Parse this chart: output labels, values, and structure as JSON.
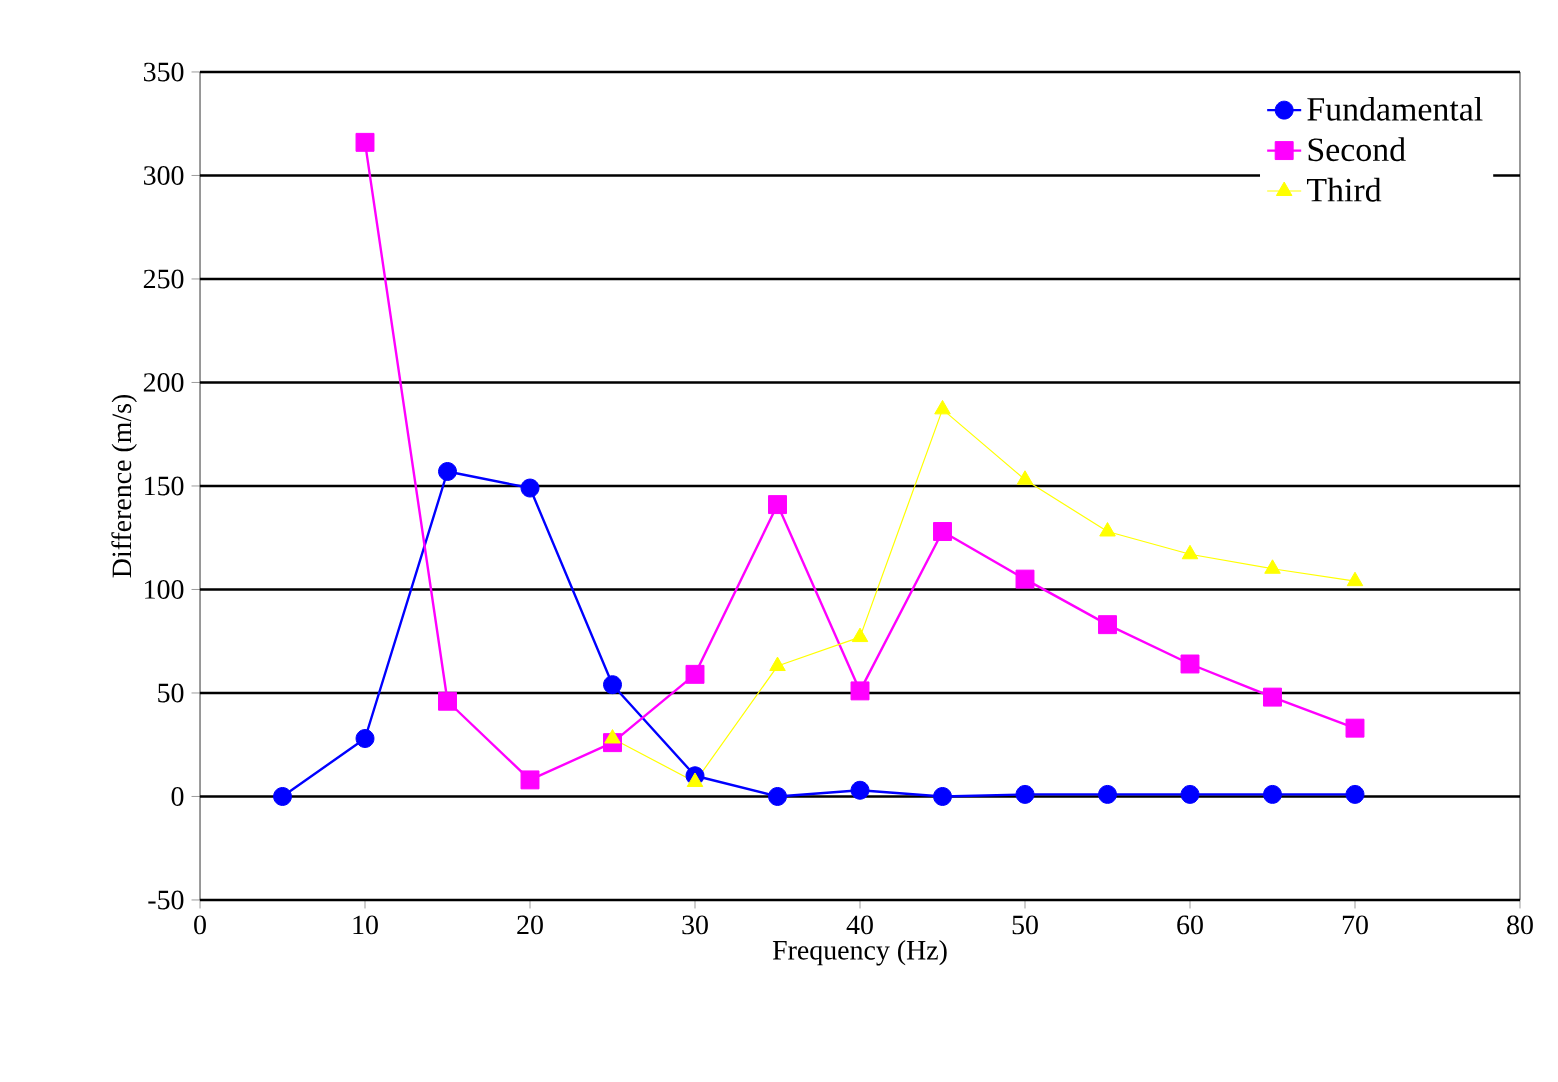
{
  "chart_data": {
    "type": "line",
    "xlabel": "Frequency (Hz)",
    "ylabel": "Difference (m/s)",
    "xlim": [
      0,
      80
    ],
    "xticks": [
      0,
      10,
      20,
      30,
      40,
      50,
      60,
      70,
      80
    ],
    "ylim": [
      -50,
      350
    ],
    "yticks": [
      -50,
      0,
      50,
      100,
      150,
      200,
      250,
      300,
      350
    ],
    "grid": "y",
    "legend": "top right",
    "series": [
      {
        "name": "Fundamental",
        "color": "#0000ff",
        "marker": "circle",
        "x": [
          5,
          10,
          15,
          20,
          25,
          30,
          35,
          40,
          45,
          50,
          55,
          60,
          65,
          70
        ],
        "values": [
          0,
          28,
          157,
          149,
          54,
          10,
          0,
          3,
          0,
          1,
          1,
          1,
          1,
          1
        ]
      },
      {
        "name": "Second",
        "color": "#ff00ff",
        "marker": "square",
        "x": [
          10,
          15,
          20,
          25,
          30,
          35,
          40,
          45,
          50,
          55,
          60,
          65,
          70
        ],
        "values": [
          316,
          46,
          8,
          26,
          59,
          141,
          51,
          128,
          105,
          83,
          64,
          48,
          33
        ]
      },
      {
        "name": "Third",
        "color": "#ffff00",
        "marker": "triangle",
        "x": [
          25,
          30,
          35,
          40,
          45,
          50,
          55,
          60,
          65,
          70
        ],
        "values": [
          28,
          7,
          63,
          77,
          187,
          153,
          128,
          117,
          110,
          104
        ]
      }
    ]
  }
}
